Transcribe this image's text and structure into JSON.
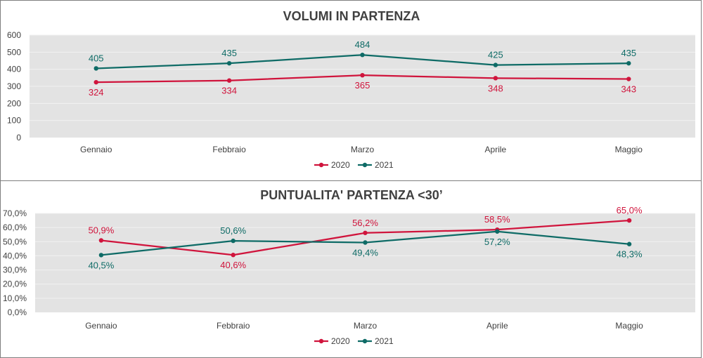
{
  "colors": {
    "series2020": "#d0143c",
    "series2021": "#0e6b66",
    "plot_bg": "#e3e3e3",
    "grid": "#f2f2f2"
  },
  "chart_data": [
    {
      "type": "line",
      "title": "VOLUMI IN PARTENZA",
      "categories": [
        "Gennaio",
        "Febbraio",
        "Marzo",
        "Aprile",
        "Maggio"
      ],
      "series": [
        {
          "name": "2020",
          "values": [
            324,
            334,
            365,
            348,
            343
          ],
          "labels": [
            "324",
            "334",
            "365",
            "348",
            "343"
          ],
          "label_pos": [
            "below",
            "below",
            "below",
            "below",
            "below"
          ]
        },
        {
          "name": "2021",
          "values": [
            405,
            435,
            484,
            425,
            435
          ],
          "labels": [
            "405",
            "435",
            "484",
            "425",
            "435"
          ],
          "label_pos": [
            "above",
            "above",
            "above",
            "above",
            "above"
          ]
        }
      ],
      "ylim": [
        0,
        600
      ],
      "yticks": [
        0,
        100,
        200,
        300,
        400,
        500,
        600
      ],
      "ytick_labels": [
        "0",
        "100",
        "200",
        "300",
        "400",
        "500",
        "600"
      ],
      "grid": true,
      "legend": "bottom"
    },
    {
      "type": "line",
      "title": "PUNTUALITA' PARTENZA <30’",
      "categories": [
        "Gennaio",
        "Febbraio",
        "Marzo",
        "Aprile",
        "Maggio"
      ],
      "series": [
        {
          "name": "2020",
          "values": [
            50.9,
            40.6,
            56.2,
            58.5,
            65.0
          ],
          "labels": [
            "50,9%",
            "40,6%",
            "56,2%",
            "58,5%",
            "65,0%"
          ],
          "label_pos": [
            "above",
            "below",
            "above",
            "above",
            "above"
          ]
        },
        {
          "name": "2021",
          "values": [
            40.5,
            50.6,
            49.4,
            57.2,
            48.3
          ],
          "labels": [
            "40,5%",
            "50,6%",
            "49,4%",
            "57,2%",
            "48,3%"
          ],
          "label_pos": [
            "below",
            "above",
            "below",
            "below",
            "below"
          ]
        }
      ],
      "ylim": [
        0,
        70
      ],
      "yticks": [
        0,
        10,
        20,
        30,
        40,
        50,
        60,
        70
      ],
      "ytick_labels": [
        "0,0%",
        "10,0%",
        "20,0%",
        "30,0%",
        "40,0%",
        "50,0%",
        "60,0%",
        "70,0%"
      ],
      "grid": true,
      "legend": "bottom"
    }
  ]
}
